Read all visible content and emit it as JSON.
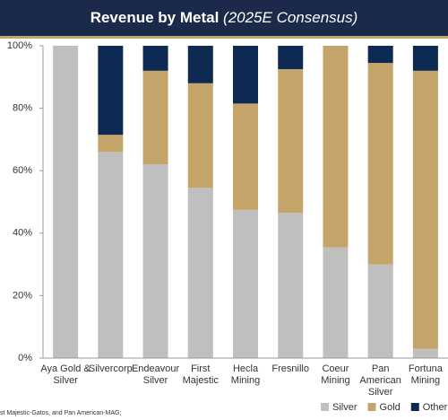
{
  "chart_data": {
    "type": "stacked_bar",
    "title": "Revenue by Metal",
    "subtitle": "(2025E Consensus)",
    "categories": [
      "Aya Gold &\nSilver",
      "Silvercorp",
      "Endeavour\nSilver",
      "First\nMajestic",
      "Hecla\nMining",
      "Fresnillo",
      "Coeur\nMining",
      "Pan\nAmerican\nSilver",
      "Fortuna\nMining"
    ],
    "series": [
      {
        "name": "Silver",
        "color": "#bfbfbf",
        "values": [
          100,
          66,
          62,
          54.5,
          47.5,
          46.5,
          35.5,
          30,
          3
        ]
      },
      {
        "name": "Gold",
        "color": "#c4a468",
        "values": [
          0,
          5.5,
          30,
          33.5,
          34,
          46,
          64.5,
          64.5,
          89
        ]
      },
      {
        "name": "Other",
        "color": "#0f2a52",
        "values": [
          0,
          28.5,
          8,
          12,
          18.5,
          7.5,
          0,
          5.5,
          8
        ]
      }
    ],
    "ylim": [
      0,
      100
    ],
    "yticks": [
      {
        "value": 0,
        "label": "0%"
      },
      {
        "value": 20,
        "label": "20%"
      },
      {
        "value": 40,
        "label": "40%"
      },
      {
        "value": 60,
        "label": "60%"
      },
      {
        "value": 80,
        "label": "80%"
      },
      {
        "value": 100,
        "label": "100%"
      }
    ],
    "legend": "bottom-right",
    "footnote": "st Majestic-Gatos, and Pan American-MAG;"
  }
}
